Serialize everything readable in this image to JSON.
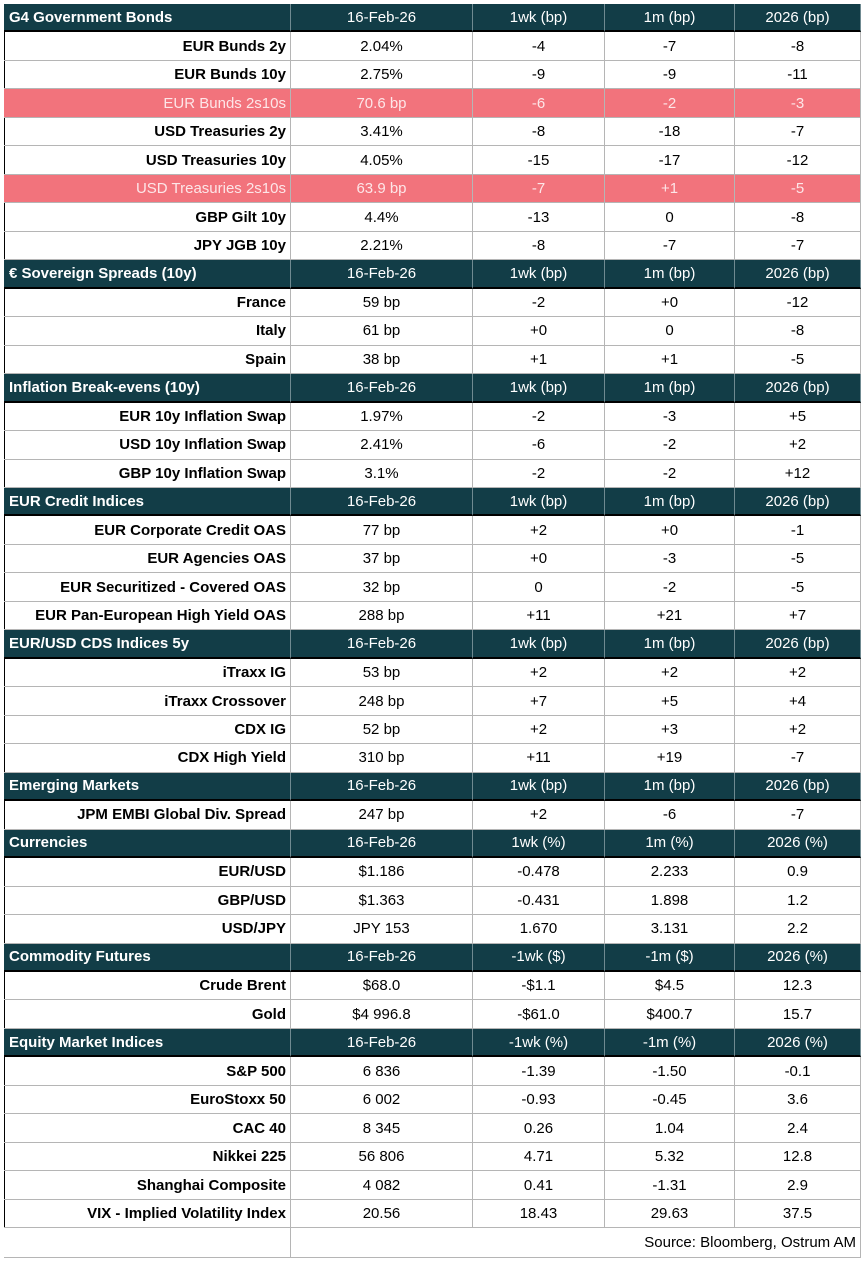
{
  "sections": [
    {
      "header": [
        "G4 Government Bonds",
        "16-Feb-26",
        "1wk (bp)",
        "1m (bp)",
        "2026 (bp)"
      ],
      "rows": [
        {
          "cells": [
            "EUR Bunds 2y",
            "2.04%",
            "-4",
            "-7",
            "-8"
          ]
        },
        {
          "cells": [
            "EUR Bunds 10y",
            "2.75%",
            "-9",
            "-9",
            "-11"
          ]
        },
        {
          "cells": [
            "EUR Bunds 2s10s",
            "70.6 bp",
            "-6",
            "-2",
            "-3"
          ],
          "highlight": true
        },
        {
          "cells": [
            "USD Treasuries 2y",
            "3.41%",
            "-8",
            "-18",
            "-7"
          ]
        },
        {
          "cells": [
            "USD Treasuries 10y",
            "4.05%",
            "-15",
            "-17",
            "-12"
          ]
        },
        {
          "cells": [
            "USD Treasuries 2s10s",
            "63.9 bp",
            "-7",
            "+1",
            "-5"
          ],
          "highlight": true
        },
        {
          "cells": [
            "GBP Gilt 10y",
            "4.4%",
            "-13",
            "0",
            "-8"
          ]
        },
        {
          "cells": [
            "JPY JGB 10y",
            "2.21%",
            "-8",
            "-7",
            "-7"
          ]
        }
      ]
    },
    {
      "header": [
        "€ Sovereign Spreads (10y)",
        "16-Feb-26",
        "1wk (bp)",
        "1m (bp)",
        "2026 (bp)"
      ],
      "rows": [
        {
          "cells": [
            "France",
            "59 bp",
            "-2",
            "+0",
            "-12"
          ]
        },
        {
          "cells": [
            "Italy",
            "61 bp",
            "+0",
            "0",
            "-8"
          ]
        },
        {
          "cells": [
            "Spain",
            "38 bp",
            "+1",
            "+1",
            "-5"
          ]
        }
      ]
    },
    {
      "header": [
        "Inflation Break-evens (10y)",
        "16-Feb-26",
        "1wk (bp)",
        "1m (bp)",
        "2026 (bp)"
      ],
      "rows": [
        {
          "cells": [
            "EUR 10y Inflation Swap",
            "1.97%",
            "-2",
            "-3",
            "+5"
          ]
        },
        {
          "cells": [
            "USD 10y Inflation Swap",
            "2.41%",
            "-6",
            "-2",
            "+2"
          ]
        },
        {
          "cells": [
            "GBP 10y Inflation Swap",
            "3.1%",
            "-2",
            "-2",
            "+12"
          ]
        }
      ]
    },
    {
      "header": [
        "EUR Credit Indices",
        "16-Feb-26",
        "1wk (bp)",
        "1m (bp)",
        "2026 (bp)"
      ],
      "rows": [
        {
          "cells": [
            "EUR Corporate Credit OAS",
            "77 bp",
            "+2",
            "+0",
            "-1"
          ]
        },
        {
          "cells": [
            "EUR Agencies OAS",
            "37 bp",
            "+0",
            "-3",
            "-5"
          ]
        },
        {
          "cells": [
            "EUR Securitized - Covered OAS",
            "32 bp",
            "0",
            "-2",
            "-5"
          ]
        },
        {
          "cells": [
            "EUR Pan-European High Yield OAS",
            "288 bp",
            "+11",
            "+21",
            "+7"
          ]
        }
      ]
    },
    {
      "header": [
        "EUR/USD CDS Indices 5y",
        "16-Feb-26",
        "1wk (bp)",
        "1m (bp)",
        "2026 (bp)"
      ],
      "rows": [
        {
          "cells": [
            "iTraxx IG",
            "53 bp",
            "+2",
            "+2",
            "+2"
          ]
        },
        {
          "cells": [
            "iTraxx Crossover",
            "248 bp",
            "+7",
            "+5",
            "+4"
          ]
        },
        {
          "cells": [
            "CDX IG",
            "52 bp",
            "+2",
            "+3",
            "+2"
          ]
        },
        {
          "cells": [
            "CDX High Yield",
            "310 bp",
            "+11",
            "+19",
            "-7"
          ]
        }
      ]
    },
    {
      "header": [
        "Emerging Markets",
        "16-Feb-26",
        "1wk (bp)",
        "1m (bp)",
        "2026 (bp)"
      ],
      "rows": [
        {
          "cells": [
            "JPM EMBI Global Div. Spread",
            "247 bp",
            "+2",
            "-6",
            "-7"
          ]
        }
      ]
    },
    {
      "header": [
        "Currencies",
        "16-Feb-26",
        "1wk (%)",
        "1m (%)",
        "2026 (%)"
      ],
      "rows": [
        {
          "cells": [
            "EUR/USD",
            "$1.186",
            "-0.478",
            "2.233",
            "0.9"
          ]
        },
        {
          "cells": [
            "GBP/USD",
            "$1.363",
            "-0.431",
            "1.898",
            "1.2"
          ]
        },
        {
          "cells": [
            "USD/JPY",
            "JPY 153",
            "1.670",
            "3.131",
            "2.2"
          ]
        }
      ]
    },
    {
      "header": [
        "Commodity Futures",
        "16-Feb-26",
        "-1wk ($)",
        "-1m ($)",
        "2026 (%)"
      ],
      "rows": [
        {
          "cells": [
            "Crude Brent",
            "$68.0",
            "-$1.1",
            "$4.5",
            "12.3"
          ]
        },
        {
          "cells": [
            "Gold",
            "$4 996.8",
            "-$61.0",
            "$400.7",
            "15.7"
          ]
        }
      ]
    },
    {
      "header": [
        "Equity Market Indices",
        "16-Feb-26",
        "-1wk (%)",
        "-1m (%)",
        "2026 (%)"
      ],
      "rows": [
        {
          "cells": [
            "S&P 500",
            "6 836",
            "-1.39",
            "-1.50",
            "-0.1"
          ]
        },
        {
          "cells": [
            "EuroStoxx 50",
            "6 002",
            "-0.93",
            "-0.45",
            "3.6"
          ]
        },
        {
          "cells": [
            "CAC 40",
            "8 345",
            "0.26",
            "1.04",
            "2.4"
          ]
        },
        {
          "cells": [
            "Nikkei 225",
            "56 806",
            "4.71",
            "5.32",
            "12.8"
          ]
        },
        {
          "cells": [
            "Shanghai Composite",
            "4 082",
            "0.41",
            "-1.31",
            "2.9"
          ]
        },
        {
          "cells": [
            "VIX - Implied Volatility Index",
            "20.56",
            "18.43",
            "29.63",
            "37.5"
          ]
        }
      ]
    }
  ],
  "footer": {
    "source": "Source: Bloomberg, Ostrum AM"
  }
}
